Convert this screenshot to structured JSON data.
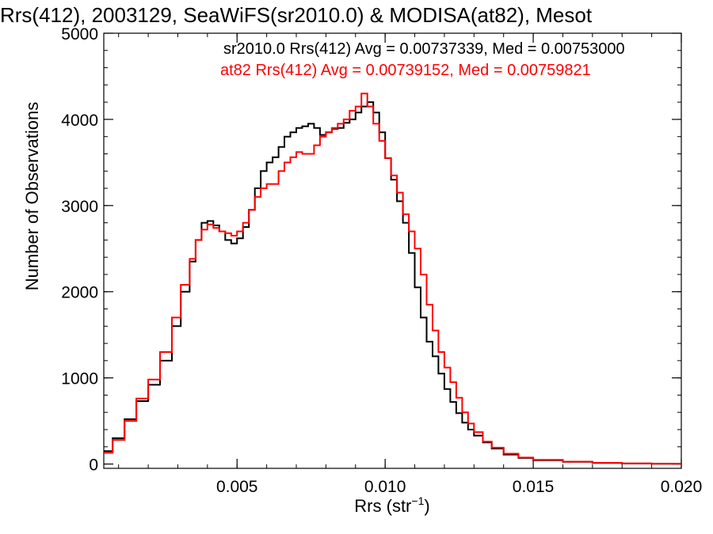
{
  "chart_data": {
    "type": "line",
    "title": "Rrs(412), 2003129, SeaWiFS(sr2010.0) & MODISA(at82), Mesot",
    "xlabel_main": "Rrs (str",
    "xlabel_sup": "−1",
    "xlabel_close": ")",
    "ylabel": "Number of Observations",
    "xlim": [
      0.0005,
      0.02
    ],
    "ylim": [
      -50,
      5000
    ],
    "x_ticks": [
      0.005,
      0.01,
      0.015,
      0.02
    ],
    "x_tick_labels": [
      "0.005",
      "0.010",
      "0.015",
      "0.020"
    ],
    "y_ticks": [
      0,
      1000,
      2000,
      3000,
      4000,
      5000
    ],
    "y_tick_labels": [
      "0",
      "1000",
      "2000",
      "3000",
      "4000",
      "5000"
    ],
    "grid": false,
    "legend_position": "top-right",
    "series": [
      {
        "name": "sr2010.0 Rrs(412) Avg = 0.00737339, Med = 0.00753000",
        "color": "#000000",
        "points": [
          [
            0.0005,
            150
          ],
          [
            0.0008,
            300
          ],
          [
            0.0012,
            520
          ],
          [
            0.0016,
            730
          ],
          [
            0.002,
            920
          ],
          [
            0.0024,
            1200
          ],
          [
            0.0028,
            1600
          ],
          [
            0.0031,
            2000
          ],
          [
            0.0034,
            2350
          ],
          [
            0.0036,
            2600
          ],
          [
            0.0038,
            2800
          ],
          [
            0.004,
            2820
          ],
          [
            0.0042,
            2770
          ],
          [
            0.0044,
            2700
          ],
          [
            0.0046,
            2600
          ],
          [
            0.0048,
            2560
          ],
          [
            0.005,
            2620
          ],
          [
            0.0052,
            2750
          ],
          [
            0.0054,
            2950
          ],
          [
            0.0056,
            3200
          ],
          [
            0.0058,
            3400
          ],
          [
            0.006,
            3500
          ],
          [
            0.0062,
            3560
          ],
          [
            0.0064,
            3680
          ],
          [
            0.0066,
            3800
          ],
          [
            0.0068,
            3850
          ],
          [
            0.007,
            3900
          ],
          [
            0.0072,
            3920
          ],
          [
            0.0074,
            3950
          ],
          [
            0.0076,
            3900
          ],
          [
            0.0078,
            3820
          ],
          [
            0.008,
            3850
          ],
          [
            0.0082,
            3890
          ],
          [
            0.0084,
            3900
          ],
          [
            0.0086,
            3960
          ],
          [
            0.0088,
            4000
          ],
          [
            0.009,
            4080
          ],
          [
            0.0092,
            4150
          ],
          [
            0.0094,
            4200
          ],
          [
            0.0096,
            4080
          ],
          [
            0.0098,
            3850
          ],
          [
            0.01,
            3550
          ],
          [
            0.0102,
            3300
          ],
          [
            0.0104,
            3050
          ],
          [
            0.0106,
            2800
          ],
          [
            0.0108,
            2450
          ],
          [
            0.011,
            2050
          ],
          [
            0.0112,
            1700
          ],
          [
            0.0114,
            1420
          ],
          [
            0.0116,
            1250
          ],
          [
            0.0118,
            1050
          ],
          [
            0.012,
            870
          ],
          [
            0.0122,
            720
          ],
          [
            0.0124,
            590
          ],
          [
            0.0126,
            480
          ],
          [
            0.0128,
            400
          ],
          [
            0.013,
            330
          ],
          [
            0.0133,
            250
          ],
          [
            0.0136,
            180
          ],
          [
            0.014,
            110
          ],
          [
            0.0145,
            70
          ],
          [
            0.015,
            45
          ],
          [
            0.016,
            25
          ],
          [
            0.017,
            12
          ],
          [
            0.018,
            6
          ],
          [
            0.019,
            3
          ],
          [
            0.02,
            1
          ]
        ]
      },
      {
        "name": "at82 Rrs(412) Avg = 0.00739152, Med = 0.00759821",
        "color": "#ff0000",
        "points": [
          [
            0.0005,
            130
          ],
          [
            0.0008,
            280
          ],
          [
            0.0012,
            500
          ],
          [
            0.0016,
            760
          ],
          [
            0.002,
            980
          ],
          [
            0.0024,
            1300
          ],
          [
            0.0028,
            1700
          ],
          [
            0.0031,
            2080
          ],
          [
            0.0034,
            2380
          ],
          [
            0.0036,
            2600
          ],
          [
            0.0038,
            2720
          ],
          [
            0.004,
            2780
          ],
          [
            0.0042,
            2740
          ],
          [
            0.0044,
            2700
          ],
          [
            0.0046,
            2680
          ],
          [
            0.0048,
            2650
          ],
          [
            0.005,
            2700
          ],
          [
            0.0052,
            2800
          ],
          [
            0.0054,
            2950
          ],
          [
            0.0056,
            3100
          ],
          [
            0.0058,
            3200
          ],
          [
            0.006,
            3250
          ],
          [
            0.0062,
            3250
          ],
          [
            0.0064,
            3400
          ],
          [
            0.0066,
            3500
          ],
          [
            0.0068,
            3560
          ],
          [
            0.007,
            3620
          ],
          [
            0.0072,
            3600
          ],
          [
            0.0074,
            3600
          ],
          [
            0.0076,
            3700
          ],
          [
            0.0078,
            3800
          ],
          [
            0.008,
            3850
          ],
          [
            0.0082,
            3900
          ],
          [
            0.0084,
            3950
          ],
          [
            0.0086,
            4000
          ],
          [
            0.0088,
            4100
          ],
          [
            0.009,
            4150
          ],
          [
            0.0092,
            4300
          ],
          [
            0.0094,
            4150
          ],
          [
            0.0096,
            3950
          ],
          [
            0.0098,
            3750
          ],
          [
            0.01,
            3550
          ],
          [
            0.0102,
            3350
          ],
          [
            0.0104,
            3150
          ],
          [
            0.0106,
            2900
          ],
          [
            0.0108,
            2700
          ],
          [
            0.011,
            2500
          ],
          [
            0.0112,
            2200
          ],
          [
            0.0114,
            1850
          ],
          [
            0.0116,
            1550
          ],
          [
            0.0118,
            1300
          ],
          [
            0.012,
            1120
          ],
          [
            0.0122,
            950
          ],
          [
            0.0124,
            770
          ],
          [
            0.0126,
            600
          ],
          [
            0.0128,
            470
          ],
          [
            0.013,
            370
          ],
          [
            0.0133,
            260
          ],
          [
            0.0136,
            190
          ],
          [
            0.014,
            120
          ],
          [
            0.0145,
            75
          ],
          [
            0.015,
            48
          ],
          [
            0.016,
            27
          ],
          [
            0.017,
            14
          ],
          [
            0.018,
            7
          ],
          [
            0.019,
            4
          ],
          [
            0.02,
            2
          ]
        ]
      }
    ]
  }
}
